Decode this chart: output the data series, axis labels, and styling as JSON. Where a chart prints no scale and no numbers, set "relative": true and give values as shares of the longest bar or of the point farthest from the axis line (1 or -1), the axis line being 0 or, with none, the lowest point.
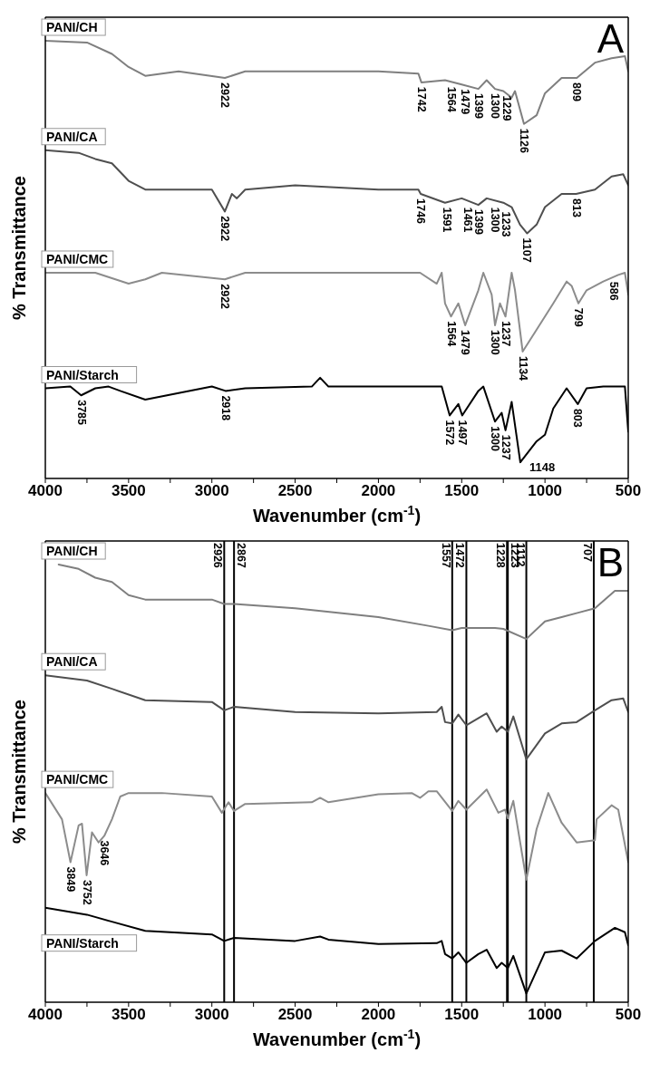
{
  "chart_data": [
    {
      "type": "line",
      "title": "A",
      "xlabel": "Wavenumber (cm$^{-1}$)",
      "ylabel": "% Transmittance",
      "relative": true,
      "tick_labels": "x",
      "xlim": [
        4000,
        500
      ],
      "xticks": [
        4000,
        {
          "value": 3750,
          "label": null
        },
        3500,
        {
          "value": 3250,
          "label": null
        },
        3000,
        {
          "value": 2750,
          "label": null
        },
        2500,
        {
          "value": 2250,
          "label": null
        },
        2000,
        {
          "value": 1750,
          "label": null
        },
        1500,
        {
          "value": 1250,
          "label": null
        },
        1000,
        {
          "value": 750,
          "label": null
        },
        500
      ],
      "series": [
        {
          "name": "PANI/CH",
          "color": "#7f7f7f",
          "x": [
            4000,
            3750,
            3600,
            3500,
            3400,
            3200,
            2922,
            2800,
            2500,
            2000,
            1760,
            1742,
            1600,
            1500,
            1400,
            1350,
            1300,
            1250,
            1200,
            1180,
            1126,
            1050,
            1000,
            900,
            809,
            700,
            600,
            520,
            500
          ],
          "values": [
            1.0,
            0.996,
            0.97,
            0.94,
            0.92,
            0.93,
            0.915,
            0.93,
            0.93,
            0.93,
            0.925,
            0.905,
            0.91,
            0.9,
            0.89,
            0.91,
            0.89,
            0.885,
            0.87,
            0.885,
            0.81,
            0.83,
            0.88,
            0.915,
            0.915,
            0.95,
            0.96,
            0.965,
            0.93
          ]
        },
        {
          "name": "PANI/CA",
          "color": "#4f4f4f",
          "x": [
            4000,
            3800,
            3700,
            3600,
            3500,
            3400,
            3000,
            2922,
            2880,
            2850,
            2800,
            2500,
            2000,
            1760,
            1746,
            1600,
            1500,
            1400,
            1350,
            1250,
            1200,
            1150,
            1107,
            1050,
            1000,
            900,
            813,
            700,
            600,
            530,
            500
          ],
          "values": [
            0.75,
            0.744,
            0.73,
            0.72,
            0.68,
            0.66,
            0.66,
            0.61,
            0.65,
            0.64,
            0.66,
            0.67,
            0.66,
            0.66,
            0.65,
            0.63,
            0.64,
            0.625,
            0.64,
            0.63,
            0.62,
            0.58,
            0.56,
            0.58,
            0.62,
            0.65,
            0.65,
            0.66,
            0.69,
            0.695,
            0.67
          ]
        },
        {
          "name": "PANI/CMC",
          "color": "#8c8c8c",
          "x": [
            4000,
            3700,
            3500,
            3400,
            3300,
            2922,
            2800,
            2500,
            2000,
            1750,
            1650,
            1620,
            1600,
            1564,
            1520,
            1479,
            1400,
            1370,
            1320,
            1300,
            1270,
            1237,
            1200,
            1180,
            1134,
            1050,
            950,
            870,
            840,
            799,
            750,
            650,
            560,
            520,
            500
          ],
          "values": [
            0.47,
            0.47,
            0.445,
            0.455,
            0.47,
            0.455,
            0.47,
            0.47,
            0.47,
            0.47,
            0.445,
            0.47,
            0.4,
            0.37,
            0.4,
            0.35,
            0.43,
            0.47,
            0.42,
            0.35,
            0.4,
            0.37,
            0.47,
            0.43,
            0.29,
            0.34,
            0.4,
            0.45,
            0.44,
            0.4,
            0.43,
            0.45,
            0.465,
            0.47,
            0.42
          ]
        },
        {
          "name": "PANI/Starch",
          "color": "#000000",
          "x": [
            4000,
            3850,
            3785,
            3700,
            3620,
            3550,
            3400,
            3000,
            2918,
            2800,
            2400,
            2350,
            2300,
            2000,
            1650,
            1620,
            1572,
            1520,
            1497,
            1400,
            1370,
            1300,
            1260,
            1237,
            1200,
            1148,
            1050,
            1000,
            950,
            870,
            803,
            750,
            650,
            550,
            520,
            500
          ],
          "values": [
            0.206,
            0.21,
            0.19,
            0.206,
            0.21,
            0.2,
            0.18,
            0.21,
            0.2,
            0.206,
            0.21,
            0.23,
            0.21,
            0.21,
            0.21,
            0.21,
            0.144,
            0.17,
            0.144,
            0.2,
            0.21,
            0.13,
            0.15,
            0.11,
            0.175,
            0.037,
            0.085,
            0.1,
            0.16,
            0.206,
            0.17,
            0.206,
            0.21,
            0.21,
            0.21,
            0.107
          ]
        }
      ],
      "annotations": [
        {
          "text": "2922",
          "x": 2922,
          "y": 0.915
        },
        {
          "text": "1742",
          "x": 1742,
          "y": 0.905
        },
        {
          "text": "1564",
          "x": 1564,
          "y": 0.905
        },
        {
          "text": "1479",
          "x": 1479,
          "y": 0.9
        },
        {
          "text": "1399",
          "x": 1399,
          "y": 0.89
        },
        {
          "text": "1300",
          "x": 1300,
          "y": 0.89
        },
        {
          "text": "1229",
          "x": 1229,
          "y": 0.885
        },
        {
          "text": "1126",
          "x": 1126,
          "y": 0.81
        },
        {
          "text": "809",
          "x": 809,
          "y": 0.915
        },
        {
          "text": "2922",
          "x": 2922,
          "y": 0.61
        },
        {
          "text": "1746",
          "x": 1746,
          "y": 0.65
        },
        {
          "text": "1591",
          "x": 1591,
          "y": 0.63
        },
        {
          "text": "1461",
          "x": 1461,
          "y": 0.63
        },
        {
          "text": "1399",
          "x": 1399,
          "y": 0.625
        },
        {
          "text": "1300",
          "x": 1300,
          "y": 0.63
        },
        {
          "text": "1233",
          "x": 1233,
          "y": 0.62
        },
        {
          "text": "1107",
          "x": 1107,
          "y": 0.56
        },
        {
          "text": "813",
          "x": 813,
          "y": 0.65
        },
        {
          "text": "2922",
          "x": 2922,
          "y": 0.455
        },
        {
          "text": "1564",
          "x": 1564,
          "y": 0.37
        },
        {
          "text": "1479",
          "x": 1479,
          "y": 0.35
        },
        {
          "text": "1300",
          "x": 1300,
          "y": 0.35
        },
        {
          "text": "1237",
          "x": 1237,
          "y": 0.37
        },
        {
          "text": "1134",
          "x": 1134,
          "y": 0.29
        },
        {
          "text": "799",
          "x": 799,
          "y": 0.4
        },
        {
          "text": "586",
          "x": 586,
          "y": 0.46
        },
        {
          "text": "3785",
          "x": 3785,
          "y": 0.19
        },
        {
          "text": "2918",
          "x": 2918,
          "y": 0.2
        },
        {
          "text": "1572",
          "x": 1572,
          "y": 0.144
        },
        {
          "text": "1497",
          "x": 1497,
          "y": 0.144
        },
        {
          "text": "1300",
          "x": 1300,
          "y": 0.13
        },
        {
          "text": "1237",
          "x": 1237,
          "y": 0.11
        },
        {
          "text": "1148",
          "x": 1148,
          "y": 0.037
        },
        {
          "text": "803",
          "x": 803,
          "y": 0.17
        }
      ]
    },
    {
      "type": "line",
      "title": "B",
      "xlabel": "Wavenumber (cm$^{-1}$)",
      "ylabel": "% Transmittance",
      "relative": true,
      "tick_labels": "x",
      "xlim": [
        4000,
        500
      ],
      "xticks": [
        4000,
        {
          "value": 3750,
          "label": null
        },
        3500,
        {
          "value": 3250,
          "label": null
        },
        3000,
        {
          "value": 2750,
          "label": null
        },
        2500,
        {
          "value": 2250,
          "label": null
        },
        2000,
        {
          "value": 1750,
          "label": null
        },
        1500,
        {
          "value": 1250,
          "label": null
        },
        1000,
        {
          "value": 750,
          "label": null
        },
        500
      ],
      "series": [
        {
          "name": "PANI/CH",
          "color": "#7f7f7f",
          "x": [
            3920,
            3800,
            3700,
            3600,
            3500,
            3400,
            3000,
            2926,
            2867,
            2500,
            2000,
            1700,
            1557,
            1500,
            1300,
            1250,
            1112,
            1000,
            900,
            800,
            700,
            580,
            520,
            500
          ],
          "values": [
            1.0,
            0.99,
            0.97,
            0.96,
            0.93,
            0.92,
            0.92,
            0.91,
            0.91,
            0.9,
            0.88,
            0.86,
            0.85,
            0.855,
            0.855,
            0.853,
            0.83,
            0.87,
            0.88,
            0.89,
            0.9,
            0.94,
            0.94,
            0.94
          ]
        },
        {
          "name": "PANI/CA",
          "color": "#4f4f4f",
          "x": [
            4000,
            3750,
            3600,
            3400,
            3000,
            2926,
            2867,
            2500,
            2000,
            1650,
            1620,
            1600,
            1557,
            1520,
            1472,
            1350,
            1290,
            1260,
            1223,
            1190,
            1112,
            1000,
            900,
            810,
            700,
            600,
            530,
            500
          ],
          "values": [
            0.747,
            0.735,
            0.716,
            0.69,
            0.686,
            0.667,
            0.675,
            0.663,
            0.66,
            0.663,
            0.675,
            0.64,
            0.637,
            0.657,
            0.633,
            0.66,
            0.618,
            0.63,
            0.618,
            0.653,
            0.555,
            0.614,
            0.637,
            0.64,
            0.667,
            0.69,
            0.694,
            0.663
          ]
        },
        {
          "name": "PANI/CMC",
          "color": "#8c8c8c",
          "x": [
            4000,
            3900,
            3849,
            3800,
            3780,
            3752,
            3720,
            3680,
            3646,
            3600,
            3550,
            3500,
            3300,
            3000,
            2940,
            2900,
            2867,
            2800,
            2400,
            2350,
            2300,
            2000,
            1800,
            1750,
            1700,
            1650,
            1557,
            1520,
            1472,
            1350,
            1280,
            1240,
            1223,
            1190,
            1112,
            1050,
            980,
            900,
            810,
            700,
            690,
            600,
            560,
            500
          ],
          "values": [
            0.478,
            0.418,
            0.32,
            0.404,
            0.408,
            0.29,
            0.388,
            0.365,
            0.38,
            0.418,
            0.47,
            0.478,
            0.478,
            0.47,
            0.433,
            0.457,
            0.437,
            0.453,
            0.457,
            0.467,
            0.457,
            0.475,
            0.478,
            0.467,
            0.482,
            0.482,
            0.437,
            0.46,
            0.44,
            0.486,
            0.433,
            0.44,
            0.42,
            0.46,
            0.28,
            0.396,
            0.478,
            0.41,
            0.365,
            0.37,
            0.418,
            0.45,
            0.44,
            0.32
          ]
        },
        {
          "name": "PANI/Starch",
          "color": "#000000",
          "x": [
            4000,
            3750,
            3600,
            3400,
            3000,
            2926,
            2867,
            2500,
            2350,
            2300,
            2000,
            1650,
            1620,
            1600,
            1557,
            1520,
            1472,
            1400,
            1350,
            1290,
            1260,
            1223,
            1190,
            1112,
            1000,
            900,
            810,
            700,
            580,
            520,
            500
          ],
          "values": [
            0.216,
            0.2,
            0.184,
            0.163,
            0.155,
            0.14,
            0.147,
            0.14,
            0.15,
            0.143,
            0.133,
            0.135,
            0.14,
            0.11,
            0.1,
            0.114,
            0.09,
            0.11,
            0.12,
            0.078,
            0.09,
            0.078,
            0.106,
            0.02,
            0.114,
            0.118,
            0.1,
            0.14,
            0.17,
            0.16,
            0.13
          ]
        }
      ],
      "annotations": [
        {
          "text": "3849",
          "x": 3849,
          "y": 0.32
        },
        {
          "text": "3752",
          "x": 3752,
          "y": 0.29
        },
        {
          "text": "3646",
          "x": 3646,
          "y": 0.38
        }
      ],
      "ref_lines": [
        {
          "axis": "x",
          "value": 2926,
          "label": "2926"
        },
        {
          "axis": "x",
          "value": 2867,
          "label": "2867"
        },
        {
          "axis": "x",
          "value": 1557,
          "label": "1557"
        },
        {
          "axis": "x",
          "value": 1472,
          "label": "1472"
        },
        {
          "axis": "x",
          "value": 1228,
          "label": "1228"
        },
        {
          "axis": "x",
          "value": 1223,
          "label": "1223"
        },
        {
          "axis": "x",
          "value": 1112,
          "label": "1112"
        },
        {
          "axis": "x",
          "value": 707,
          "label": "707"
        }
      ]
    }
  ]
}
